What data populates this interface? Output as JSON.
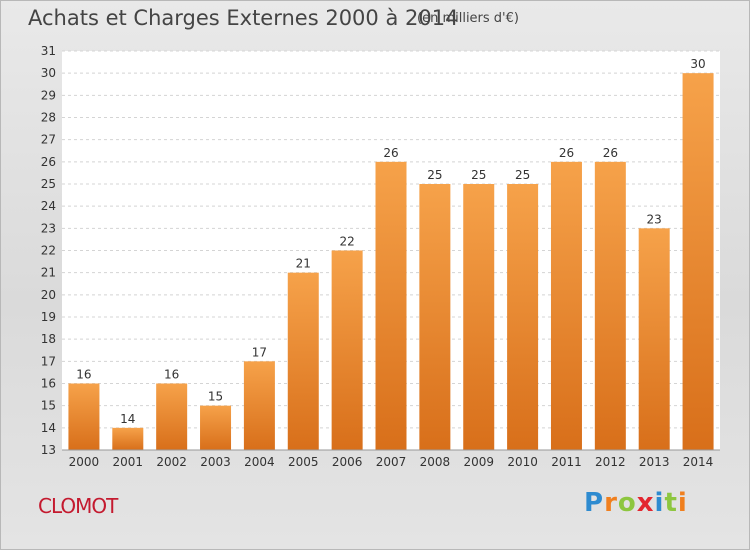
{
  "title": "Achats et Charges Externes 2000 à 2014",
  "subtitle": "(en milliers d'€)",
  "commune": "CLOMOT",
  "logo": {
    "letters": [
      "P",
      "r",
      "o",
      "x",
      "i",
      "t",
      "i"
    ],
    "colors": [
      "#2e8bd0",
      "#f07f1e",
      "#8dc63f",
      "#e3262f",
      "#2e8bd0",
      "#8dc63f",
      "#f07f1e"
    ]
  },
  "colors": {
    "bar_light": "#f6a24a",
    "bar_dark": "#d86f1a",
    "title": "#444444",
    "commune": "#c41a2f"
  },
  "chart_data": {
    "type": "bar",
    "categories": [
      "2000",
      "2001",
      "2002",
      "2003",
      "2004",
      "2005",
      "2006",
      "2007",
      "2008",
      "2009",
      "2010",
      "2011",
      "2012",
      "2013",
      "2014"
    ],
    "values": [
      16,
      14,
      16,
      15,
      17,
      21,
      22,
      26,
      25,
      25,
      25,
      26,
      26,
      23,
      30
    ],
    "ylim": [
      13,
      31
    ],
    "yticks": [
      13,
      14,
      15,
      16,
      17,
      18,
      19,
      20,
      21,
      22,
      23,
      24,
      25,
      26,
      27,
      28,
      29,
      30,
      31
    ],
    "grid": true,
    "xlabel": "",
    "ylabel": ""
  }
}
